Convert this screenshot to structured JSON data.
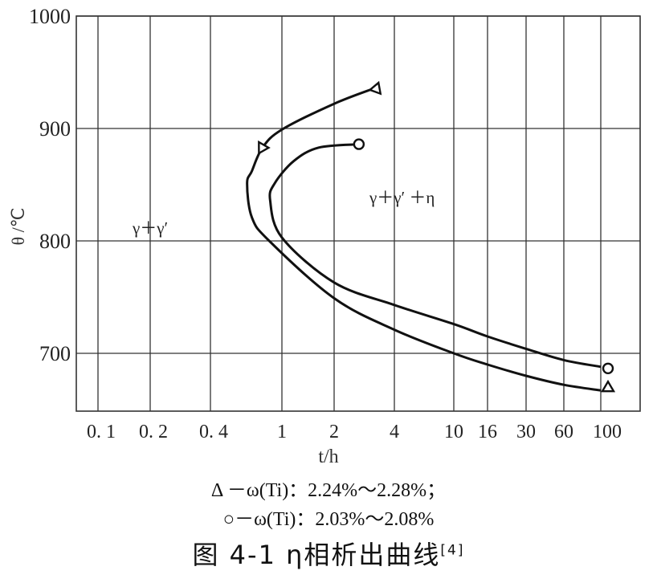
{
  "chart_data": {
    "type": "line",
    "title": "",
    "xlabel": "t/h",
    "ylabel": "θ /℃",
    "x_scale": "log (nonuniform tick spacing)",
    "x_ticks": [
      "0.1",
      "0.2",
      "0.4",
      "1",
      "2",
      "4",
      "10",
      "16",
      "30",
      "60",
      "100"
    ],
    "y_ticks": [
      "1000",
      "900",
      "800",
      "700"
    ],
    "ylim": [
      650,
      1000
    ],
    "grid": true,
    "region_labels": [
      "γ＋γ′",
      "γ＋γ′ ＋η"
    ],
    "series": [
      {
        "marker": "triangle",
        "points": [
          [
            3.2,
            936
          ],
          [
            2,
            922
          ],
          [
            1,
            899
          ],
          [
            0.78,
            883
          ],
          [
            0.68,
            862
          ],
          [
            0.64,
            851
          ],
          [
            0.68,
            821
          ],
          [
            0.85,
            800
          ],
          [
            2,
            749
          ],
          [
            4,
            721
          ],
          [
            10,
            700
          ],
          [
            16,
            690
          ],
          [
            30,
            680
          ],
          [
            60,
            672
          ],
          [
            100,
            667
          ]
        ]
      },
      {
        "marker": "circle",
        "points": [
          [
            2.66,
            886
          ],
          [
            1.63,
            883
          ],
          [
            1.17,
            871
          ],
          [
            0.91,
            851
          ],
          [
            0.86,
            836
          ],
          [
            1,
            803
          ],
          [
            2,
            763
          ],
          [
            4,
            743
          ],
          [
            10,
            726
          ],
          [
            16,
            715
          ],
          [
            30,
            704
          ],
          [
            60,
            694
          ],
          [
            100,
            688
          ]
        ]
      }
    ],
    "legend": [
      "Δ －ω(Ti)：2.24%～2.28%；",
      "○－ω(Ti)：2.03%～2.08%"
    ],
    "colors": {
      "line": "#111111",
      "grid": "#333333"
    }
  },
  "caption": {
    "text": "图 4-1  η相析出曲线",
    "ref": "[4]"
  }
}
